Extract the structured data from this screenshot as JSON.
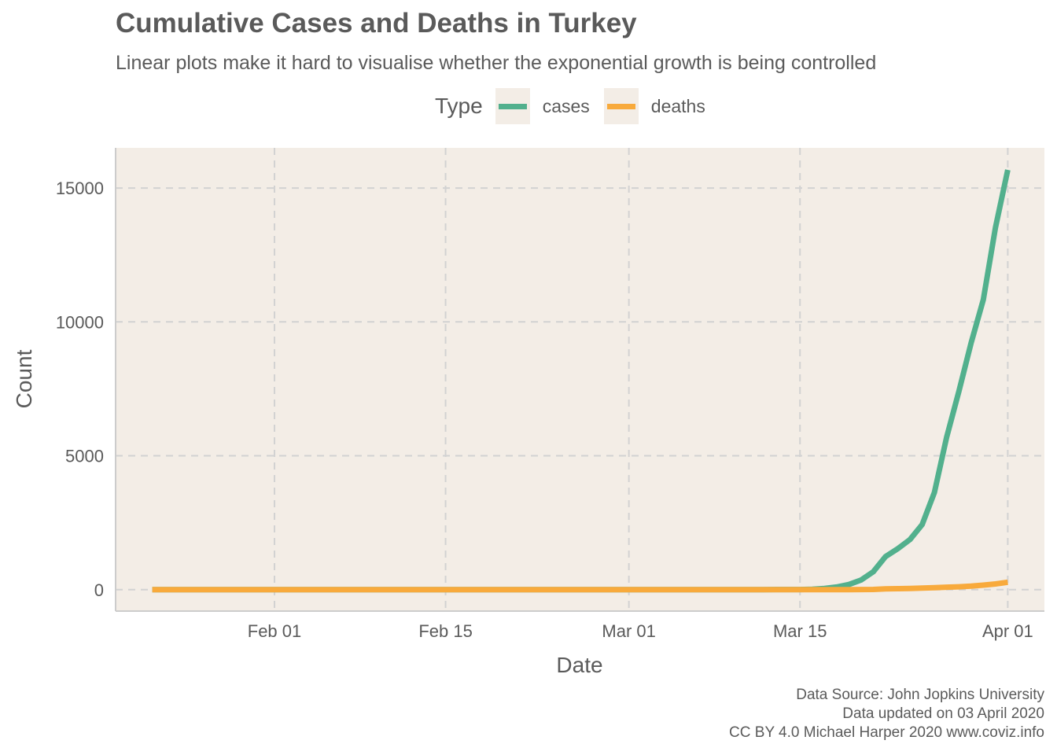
{
  "chart_data": {
    "type": "line",
    "title": "Cumulative Cases and Deaths in Turkey",
    "subtitle": "Linear plots make it hard to visualise whether the exponential growth is being controlled",
    "xlabel": "Date",
    "ylabel": "Count",
    "legend": {
      "title": "Type",
      "position": "top"
    },
    "x_ticks": [
      "Feb 01",
      "Feb 15",
      "Mar 01",
      "Mar 15",
      "Apr 01"
    ],
    "y_ticks": [
      "0",
      "5000",
      "10000",
      "15000"
    ],
    "xlim": [
      "2020-01-19",
      "2020-04-04"
    ],
    "ylim": [
      -800,
      16500
    ],
    "grid": true,
    "background_color": "#f3ede6",
    "x": [
      "2020-01-22",
      "2020-03-10",
      "2020-03-11",
      "2020-03-12",
      "2020-03-13",
      "2020-03-14",
      "2020-03-15",
      "2020-03-16",
      "2020-03-17",
      "2020-03-18",
      "2020-03-19",
      "2020-03-20",
      "2020-03-21",
      "2020-03-22",
      "2020-03-23",
      "2020-03-24",
      "2020-03-25",
      "2020-03-26",
      "2020-03-27",
      "2020-03-28",
      "2020-03-29",
      "2020-03-30",
      "2020-03-31",
      "2020-04-01"
    ],
    "series": [
      {
        "name": "cases",
        "color": "#52b08d",
        "values": [
          0,
          0,
          1,
          1,
          5,
          5,
          6,
          18,
          47,
          98,
          192,
          359,
          670,
          1236,
          1529,
          1872,
          2433,
          3629,
          5698,
          7402,
          9217,
          10827,
          13531,
          15679
        ]
      },
      {
        "name": "deaths",
        "color": "#f8aa3c",
        "values": [
          0,
          0,
          0,
          0,
          0,
          0,
          0,
          0,
          1,
          1,
          3,
          4,
          9,
          30,
          37,
          44,
          59,
          75,
          92,
          108,
          131,
          168,
          214,
          277
        ]
      }
    ]
  },
  "caption": {
    "line1": "Data Source: John Jopkins University",
    "line2": "Data updated on 03 April 2020",
    "line3": "CC BY 4.0 Michael Harper 2020 www.coviz.info"
  }
}
